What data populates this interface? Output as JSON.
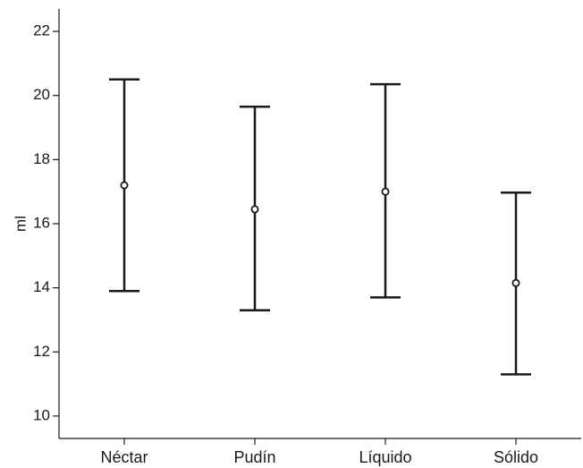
{
  "chart_data": {
    "type": "errorbar",
    "ylabel": "ml",
    "xlabel": "",
    "ylim": [
      9.3,
      22.7
    ],
    "yticks": [
      10,
      12,
      14,
      16,
      18,
      20,
      22
    ],
    "grid": false,
    "categories": [
      "Néctar",
      "Pudín",
      "Líquido",
      "Sólido"
    ],
    "series": [
      {
        "mean": [
          17.2,
          16.45,
          17.0,
          14.15
        ],
        "lower": [
          13.9,
          13.3,
          13.7,
          11.3
        ],
        "upper": [
          20.5,
          19.65,
          20.35,
          16.97
        ]
      }
    ],
    "colors": {
      "ink": "#1a1a1a"
    }
  }
}
